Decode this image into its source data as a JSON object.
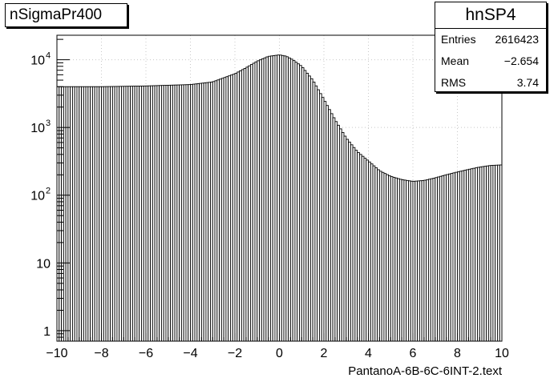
{
  "title": "nSigmaPr400",
  "stats": {
    "name": "hnSP4",
    "rows": [
      {
        "label": "Entries",
        "value": "2616423"
      },
      {
        "label": "Mean",
        "value": "−2.654"
      },
      {
        "label": "RMS",
        "value": "3.74"
      }
    ]
  },
  "chart_data": {
    "type": "bar",
    "xlabel": "PantanoA-6B-6C-6INT-2.text",
    "ylabel": "",
    "xlim": [
      -10,
      10
    ],
    "ylim": [
      0.7,
      23000
    ],
    "y_log": true,
    "grid": true,
    "x_ticks": [
      {
        "value": -10,
        "label": "−10"
      },
      {
        "value": -8,
        "label": "−8"
      },
      {
        "value": -6,
        "label": "−6"
      },
      {
        "value": -4,
        "label": "−4"
      },
      {
        "value": -2,
        "label": "−2"
      },
      {
        "value": 0,
        "label": "0"
      },
      {
        "value": 2,
        "label": "2"
      },
      {
        "value": 4,
        "label": "4"
      },
      {
        "value": 6,
        "label": "6"
      },
      {
        "value": 8,
        "label": "8"
      },
      {
        "value": 10,
        "label": "10"
      }
    ],
    "y_ticks": [
      {
        "value": 1,
        "base": "1",
        "exp": ""
      },
      {
        "value": 10,
        "base": "10",
        "exp": ""
      },
      {
        "value": 100,
        "base": "10",
        "exp": "2"
      },
      {
        "value": 1000,
        "base": "10",
        "exp": "3"
      },
      {
        "value": 10000,
        "base": "10",
        "exp": "4"
      }
    ],
    "bins": {
      "count": 200,
      "x_min": -10,
      "x_max": 10,
      "profile": [
        [
          -10,
          4000
        ],
        [
          -9,
          4000
        ],
        [
          -8,
          4000
        ],
        [
          -7,
          4050
        ],
        [
          -6,
          4100
        ],
        [
          -5,
          4200
        ],
        [
          -4,
          4300
        ],
        [
          -3,
          4700
        ],
        [
          -2,
          6200
        ],
        [
          -1.5,
          7600
        ],
        [
          -1,
          9500
        ],
        [
          -0.5,
          11200
        ],
        [
          0,
          11800
        ],
        [
          0.3,
          11300
        ],
        [
          0.6,
          10000
        ],
        [
          1,
          8000
        ],
        [
          1.5,
          5000
        ],
        [
          2,
          2600
        ],
        [
          2.5,
          1300
        ],
        [
          3,
          700
        ],
        [
          3.5,
          440
        ],
        [
          4,
          320
        ],
        [
          4.5,
          230
        ],
        [
          5,
          190
        ],
        [
          5.5,
          170
        ],
        [
          6,
          160
        ],
        [
          6.5,
          165
        ],
        [
          7,
          180
        ],
        [
          7.5,
          200
        ],
        [
          8,
          220
        ],
        [
          8.5,
          240
        ],
        [
          9,
          260
        ],
        [
          9.5,
          275
        ],
        [
          10,
          280
        ]
      ]
    }
  }
}
